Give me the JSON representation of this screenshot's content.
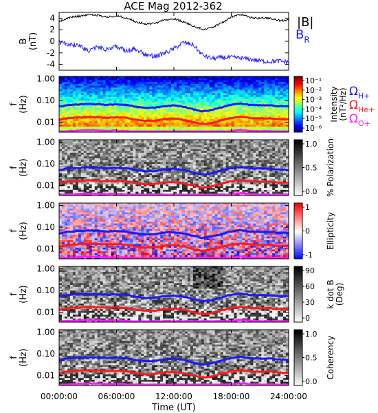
{
  "title": "ACE Mag 2012-362",
  "colors": {
    "black": "#000000",
    "blue": "#1a1aff",
    "red": "#ff1a1a",
    "magenta": "#ff1aff"
  },
  "chart_data": [
    {
      "type": "line",
      "panel": "B",
      "ylabel": "B",
      "yunit": "(nT)",
      "yticks": [
        "4",
        "2",
        "0",
        "-2",
        "-4"
      ],
      "ylim": [
        -5,
        5
      ],
      "series": [
        {
          "name": "|B|",
          "color": "#000000",
          "x": [
            0,
            1,
            2,
            3,
            4,
            5,
            6,
            7,
            8,
            9,
            10,
            11,
            12,
            13,
            14,
            15,
            16,
            17,
            18,
            19,
            20,
            21,
            22,
            23,
            24
          ],
          "values": [
            3.4,
            4.1,
            4.3,
            4.6,
            4.5,
            4.2,
            4.4,
            4.1,
            3.4,
            3.0,
            3.1,
            3.7,
            3.9,
            3.4,
            2.6,
            2.1,
            2.4,
            3.2,
            4.2,
            4.7,
            4.1,
            4.0,
            4.0,
            3.6,
            3.6
          ]
        },
        {
          "name": "B_R",
          "color": "#1a1aff",
          "x": [
            0,
            1,
            2,
            3,
            4,
            5,
            6,
            7,
            8,
            9,
            10,
            11,
            12,
            13,
            14,
            15,
            16,
            17,
            18,
            19,
            20,
            21,
            22,
            23,
            24
          ],
          "values": [
            -0.2,
            -0.5,
            -0.7,
            -1.6,
            -1.0,
            -1.4,
            -0.9,
            -1.6,
            -1.3,
            -2.3,
            -2.6,
            -2.1,
            -1.3,
            -0.2,
            -0.6,
            -2.4,
            -3.0,
            -2.8,
            -2.8,
            -2.9,
            -3.1,
            -3.4,
            -3.5,
            -3.4,
            -3.6
          ]
        }
      ]
    },
    {
      "type": "heatmap",
      "panel": "Intensity",
      "ylabel": "f",
      "yunit": "(Hz)",
      "yticks": [
        "1.00",
        "0.10",
        "0.01"
      ],
      "colorbar": {
        "label": "Intensity",
        "unit": "(nT²/Hz)",
        "ticks": [
          "10⁻¹",
          "10⁻²",
          "10⁻³",
          "10⁻⁴",
          "10⁻⁵",
          "10⁻⁶"
        ]
      }
    },
    {
      "type": "heatmap",
      "panel": "Polarization",
      "ylabel": "f",
      "yunit": "(Hz)",
      "yticks": [
        "1.00",
        "0.10",
        "0.01"
      ],
      "colorbar": {
        "label": "% Polarization",
        "ticks": [
          "1.0",
          "0.5",
          "0.0"
        ]
      }
    },
    {
      "type": "heatmap",
      "panel": "Ellipticity",
      "ylabel": "f",
      "yunit": "(Hz)",
      "yticks": [
        "1.00",
        "0.10",
        "0.01"
      ],
      "colorbar": {
        "label": "Ellipticity",
        "ticks": [
          "1",
          "0",
          "-1"
        ]
      }
    },
    {
      "type": "heatmap",
      "panel": "kdotB",
      "ylabel": "f",
      "yunit": "(Hz)",
      "yticks": [
        "1.00",
        "0.10",
        "0.01"
      ],
      "colorbar": {
        "label": "k dot B",
        "unit": "(Deg)",
        "ticks": [
          "90",
          "60",
          "30",
          "0"
        ]
      }
    },
    {
      "type": "heatmap",
      "panel": "Coherency",
      "ylabel": "f",
      "yunit": "(Hz)",
      "yticks": [
        "1.00",
        "0.10",
        "0.01"
      ],
      "colorbar": {
        "label": "Coherency",
        "ticks": [
          "1.0",
          "0.5",
          "0.0"
        ]
      }
    }
  ],
  "gyro": {
    "x": [
      0,
      1,
      2,
      3,
      4,
      5,
      6,
      7,
      8,
      9,
      10,
      11,
      12,
      13,
      14,
      15,
      16,
      17,
      18,
      19,
      20,
      21,
      22,
      23,
      24
    ],
    "H_values": [
      0.052,
      0.062,
      0.066,
      0.07,
      0.068,
      0.064,
      0.067,
      0.063,
      0.052,
      0.046,
      0.047,
      0.056,
      0.059,
      0.052,
      0.04,
      0.032,
      0.037,
      0.049,
      0.064,
      0.072,
      0.063,
      0.061,
      0.061,
      0.055,
      0.055
    ],
    "labels": {
      "H": "Ω",
      "H_sub": "H+",
      "He": "Ω",
      "He_sub": "He+",
      "O": "Ω",
      "O_sub": "O+"
    }
  },
  "legend": {
    "B_label": "|B|",
    "BR_label": "B",
    "BR_sub": "R"
  },
  "xaxis": {
    "ticks": [
      "00:00:00",
      "06:00:00",
      "12:00:00",
      "18:00:00",
      "24:00:00"
    ],
    "label": "Time (UT)"
  }
}
